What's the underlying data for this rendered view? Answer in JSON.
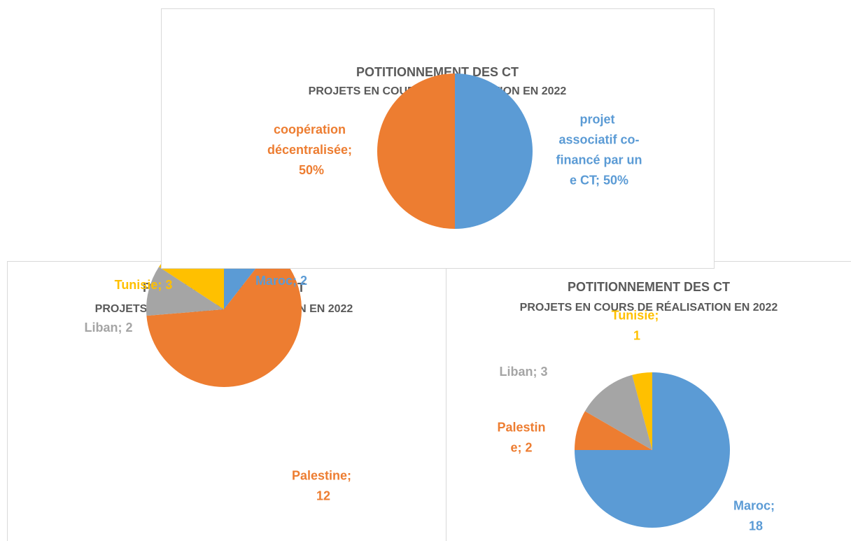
{
  "chart_data": [
    {
      "type": "pie",
      "title": "POTITIONNEMENT DES CT",
      "subtitle": "PROJETS EN COURS DE RÉALISATION EN 2022",
      "values": [
        50,
        50
      ],
      "value_labels": [
        "projet associatif co-financé par une CT; 50%",
        "coopération décentralisée; 50%"
      ],
      "colors": [
        "#5b9bd5",
        "#ed7d31"
      ]
    },
    {
      "type": "pie",
      "title": "POTITIONNEMENT DES CT",
      "subtitle": "PROJETS EN COURS DE RÉALISATION EN 2022",
      "values": [
        2,
        12,
        2,
        3
      ],
      "value_labels": [
        "Maroc; 2",
        "Palestine; 12",
        "Liban; 2",
        "Tunisie; 3"
      ],
      "colors": [
        "#5b9bd5",
        "#ed7d31",
        "#a5a5a5",
        "#ffc000"
      ]
    },
    {
      "type": "pie",
      "title": "POTITIONNEMENT DES CT",
      "subtitle": "PROJETS EN COURS DE RÉALISATION EN 2022",
      "values": [
        18,
        2,
        3,
        1
      ],
      "value_labels": [
        "Maroc; 18",
        "Palestine; 2",
        "Liban; 3",
        "Tunisie; 1"
      ],
      "colors": [
        "#5b9bd5",
        "#ed7d31",
        "#a5a5a5",
        "#ffc000"
      ]
    }
  ]
}
